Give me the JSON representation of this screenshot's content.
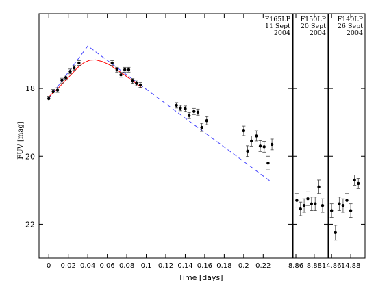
{
  "chart_data": {
    "type": "scatter",
    "xlabel": "Time [days]",
    "ylabel": "FUV [mag]",
    "ylim": [
      23.0,
      15.8
    ],
    "y_ticks": [
      "18",
      "20",
      "22"
    ],
    "y_tick_values": [
      18,
      20,
      22
    ],
    "panels": [
      {
        "label": [
          "F165LP",
          "11 Sept",
          "2004"
        ],
        "xlim": [
          -0.01,
          0.25
        ],
        "x_ticks": [
          "0",
          "0.02",
          "0.04",
          "0.06",
          "0.08",
          "0.1",
          "0.12",
          "0.14",
          "0.16",
          "0.18",
          "0.2",
          "0.22"
        ],
        "x_tick_values": [
          0,
          0.02,
          0.04,
          0.06,
          0.08,
          0.1,
          0.12,
          0.14,
          0.16,
          0.18,
          0.2,
          0.22
        ],
        "points": [
          {
            "x": 0.0,
            "y": 18.3,
            "err": 0.07
          },
          {
            "x": 0.0045,
            "y": 18.1,
            "err": 0.07
          },
          {
            "x": 0.009,
            "y": 18.05,
            "err": 0.07
          },
          {
            "x": 0.0135,
            "y": 17.77,
            "err": 0.07
          },
          {
            "x": 0.0175,
            "y": 17.68,
            "err": 0.07
          },
          {
            "x": 0.022,
            "y": 17.5,
            "err": 0.07
          },
          {
            "x": 0.026,
            "y": 17.4,
            "err": 0.07
          },
          {
            "x": 0.031,
            "y": 17.25,
            "err": 0.07
          },
          {
            "x": 0.065,
            "y": 17.25,
            "err": 0.07
          },
          {
            "x": 0.07,
            "y": 17.45,
            "err": 0.07
          },
          {
            "x": 0.074,
            "y": 17.6,
            "err": 0.07
          },
          {
            "x": 0.078,
            "y": 17.45,
            "err": 0.07
          },
          {
            "x": 0.082,
            "y": 17.45,
            "err": 0.07
          },
          {
            "x": 0.086,
            "y": 17.78,
            "err": 0.07
          },
          {
            "x": 0.09,
            "y": 17.85,
            "err": 0.07
          },
          {
            "x": 0.094,
            "y": 17.9,
            "err": 0.07
          },
          {
            "x": 0.131,
            "y": 18.5,
            "err": 0.08
          },
          {
            "x": 0.135,
            "y": 18.58,
            "err": 0.08
          },
          {
            "x": 0.14,
            "y": 18.6,
            "err": 0.08
          },
          {
            "x": 0.144,
            "y": 18.8,
            "err": 0.09
          },
          {
            "x": 0.149,
            "y": 18.68,
            "err": 0.09
          },
          {
            "x": 0.153,
            "y": 18.7,
            "err": 0.09
          },
          {
            "x": 0.157,
            "y": 19.15,
            "err": 0.12
          },
          {
            "x": 0.162,
            "y": 18.95,
            "err": 0.12
          },
          {
            "x": 0.2,
            "y": 19.25,
            "err": 0.14
          },
          {
            "x": 0.204,
            "y": 19.85,
            "err": 0.16
          },
          {
            "x": 0.208,
            "y": 19.55,
            "err": 0.15
          },
          {
            "x": 0.213,
            "y": 19.4,
            "err": 0.15
          },
          {
            "x": 0.217,
            "y": 19.7,
            "err": 0.16
          },
          {
            "x": 0.221,
            "y": 19.72,
            "err": 0.16
          },
          {
            "x": 0.225,
            "y": 20.2,
            "err": 0.2
          },
          {
            "x": 0.229,
            "y": 19.65,
            "err": 0.16
          }
        ],
        "model_solid": {
          "color": "#ff0000",
          "x": [
            0.0,
            0.01,
            0.02,
            0.03,
            0.036,
            0.042,
            0.048,
            0.055,
            0.062,
            0.07,
            0.08,
            0.09,
            0.095
          ],
          "y": [
            18.25,
            17.98,
            17.68,
            17.38,
            17.24,
            17.17,
            17.16,
            17.21,
            17.3,
            17.45,
            17.65,
            17.86,
            17.97
          ]
        },
        "model_dashed": {
          "color": "#4444ff",
          "x": [
            0.0,
            0.04,
            0.228
          ],
          "y": [
            18.3,
            16.75,
            20.75
          ]
        }
      },
      {
        "label": [
          "F150LP",
          "20 Sept",
          "2004"
        ],
        "xlim": [
          8.857,
          8.895
        ],
        "x_ticks": [
          "8.86",
          "8.88"
        ],
        "x_tick_values": [
          8.86,
          8.88
        ],
        "points": [
          {
            "x": 8.861,
            "y": 21.3,
            "err": 0.2
          },
          {
            "x": 8.865,
            "y": 21.55,
            "err": 0.2
          },
          {
            "x": 8.869,
            "y": 21.45,
            "err": 0.2
          },
          {
            "x": 8.873,
            "y": 21.25,
            "err": 0.2
          },
          {
            "x": 8.877,
            "y": 21.4,
            "err": 0.2
          },
          {
            "x": 8.881,
            "y": 21.4,
            "err": 0.2
          },
          {
            "x": 8.885,
            "y": 20.9,
            "err": 0.2
          },
          {
            "x": 8.889,
            "y": 21.45,
            "err": 0.2
          }
        ]
      },
      {
        "label": [
          "F140LP",
          "26 Sept",
          "2004"
        ],
        "xlim": [
          14.857,
          14.895
        ],
        "x_ticks": [
          "14.86",
          "14.88"
        ],
        "x_tick_values": [
          14.86,
          14.88
        ],
        "points": [
          {
            "x": 14.86,
            "y": 21.6,
            "err": 0.2
          },
          {
            "x": 14.864,
            "y": 22.25,
            "err": 0.22
          },
          {
            "x": 14.868,
            "y": 21.4,
            "err": 0.2
          },
          {
            "x": 14.872,
            "y": 21.45,
            "err": 0.2
          },
          {
            "x": 14.876,
            "y": 21.3,
            "err": 0.2
          },
          {
            "x": 14.88,
            "y": 21.6,
            "err": 0.2
          },
          {
            "x": 14.884,
            "y": 20.7,
            "err": 0.15
          },
          {
            "x": 14.888,
            "y": 20.8,
            "err": 0.15
          }
        ]
      }
    ]
  }
}
